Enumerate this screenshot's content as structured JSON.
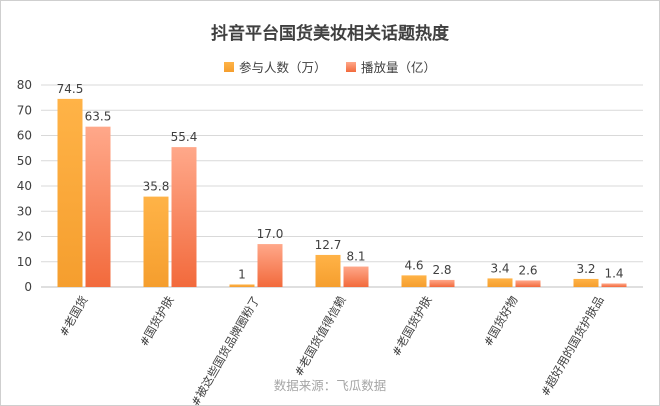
{
  "chart_data": {
    "type": "bar",
    "title": "抖音平台国货美妆相关话题热度",
    "categories": [
      "#老国货",
      "#国货护肤",
      "#被这些国货品牌圈粉了",
      "#老国货值得信赖",
      "#老国货护肤",
      "#国货好物",
      "#超好用的国货护肤品"
    ],
    "series": [
      {
        "name": "参与人数（万）",
        "values": [
          74.5,
          35.8,
          1,
          12.7,
          4.6,
          3.4,
          3.2
        ],
        "labels": [
          "74.5",
          "35.8",
          "1",
          "12.7",
          "4.6",
          "3.4",
          "3.2"
        ],
        "color": "#F5B042"
      },
      {
        "name": "播放量（亿）",
        "values": [
          63.5,
          55.4,
          17.0,
          8.1,
          2.8,
          2.6,
          1.4
        ],
        "labels": [
          "63.5",
          "55.4",
          "17.0",
          "8.1",
          "2.8",
          "2.6",
          "1.4"
        ],
        "color": "#F07A4E"
      }
    ],
    "ylim": [
      0,
      80
    ],
    "yticks": [
      "0",
      "10",
      "20",
      "30",
      "40",
      "50",
      "60",
      "70",
      "80"
    ],
    "grid": true,
    "legend_position": "top-center"
  },
  "source": "数据来源：飞瓜数据"
}
